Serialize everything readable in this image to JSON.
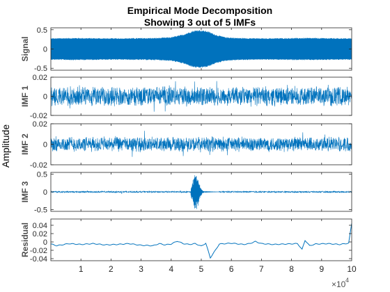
{
  "chart_data": {
    "type": "line",
    "title_line1": "Empirical Mode Decomposition",
    "title_line2": "Showing 3 out of 5 IMFs",
    "ylabel": "Amplitude",
    "xlim": [
      0,
      100000
    ],
    "x_ticks": [
      "1",
      "2",
      "3",
      "4",
      "5",
      "6",
      "7",
      "8",
      "9",
      "10"
    ],
    "x_exponent_base": "×10",
    "x_exponent_power": "4",
    "line_color": "#0072BD",
    "grid": false,
    "panels": [
      {
        "name": "Signal",
        "ylim": [
          -0.55,
          0.55
        ],
        "yticks": [
          {
            "value": 0.5,
            "label": "0.5"
          },
          {
            "value": 0,
            "label": "0"
          },
          {
            "value": -0.5,
            "label": "-0.5"
          }
        ],
        "envelope": {
          "x": [
            0,
            8000,
            20000,
            35000,
            40000,
            44000,
            47000,
            49000,
            52000,
            55000,
            58000,
            62000,
            70000,
            85000,
            100000
          ],
          "upper": [
            0.28,
            0.29,
            0.28,
            0.29,
            0.31,
            0.38,
            0.47,
            0.5,
            0.47,
            0.37,
            0.31,
            0.29,
            0.28,
            0.29,
            0.28
          ],
          "lower": [
            -0.28,
            -0.29,
            -0.28,
            -0.29,
            -0.31,
            -0.38,
            -0.47,
            -0.5,
            -0.47,
            -0.37,
            -0.31,
            -0.29,
            -0.28,
            -0.29,
            -0.28
          ]
        }
      },
      {
        "name": "IMF 1",
        "ylim": [
          -0.02,
          0.02
        ],
        "yticks": [
          {
            "value": 0.02,
            "label": "0.02"
          },
          {
            "value": 0,
            "label": "0"
          },
          {
            "value": -0.02,
            "label": "-0.02"
          }
        ],
        "noise_amplitude": 0.011
      },
      {
        "name": "IMF 2",
        "ylim": [
          -0.02,
          0.02
        ],
        "yticks": [
          {
            "value": 0.02,
            "label": "0.02"
          },
          {
            "value": 0,
            "label": "0"
          },
          {
            "value": -0.02,
            "label": "-0.02"
          }
        ],
        "noise_amplitude": 0.008
      },
      {
        "name": "IMF 3",
        "ylim": [
          -0.55,
          0.55
        ],
        "yticks": [
          {
            "value": 0.5,
            "label": "0.5"
          },
          {
            "value": 0,
            "label": "0"
          },
          {
            "value": -0.5,
            "label": "-0.5"
          }
        ],
        "burst": {
          "x": [
            48000,
            50000,
            52000,
            54000
          ],
          "peaks": [
            0.48,
            -0.38,
            0.15,
            -0.05
          ]
        },
        "baseline_noise": 0.02
      },
      {
        "name": "Residual",
        "ylim": [
          -0.045,
          0.055
        ],
        "yticks": [
          {
            "value": 0.04,
            "label": "0.04"
          },
          {
            "value": 0.02,
            "label": "0.02"
          },
          {
            "value": 0,
            "label": "0"
          },
          {
            "value": -0.02,
            "label": "-0.02"
          },
          {
            "value": -0.04,
            "label": "-0.04"
          }
        ],
        "curve": {
          "x": [
            0,
            2000,
            6000,
            10000,
            14000,
            18000,
            22000,
            26000,
            30000,
            34000,
            36000,
            38000,
            40000,
            42000,
            44000,
            46000,
            48000,
            50000,
            51500,
            53000,
            54500,
            56000,
            60000,
            64000,
            66000,
            68000,
            70000,
            74000,
            78000,
            82000,
            83500,
            84500,
            86000,
            88000,
            92000,
            96000,
            99000,
            100000
          ],
          "y": [
            -0.005,
            -0.009,
            -0.004,
            -0.006,
            -0.004,
            -0.007,
            -0.006,
            -0.004,
            -0.008,
            -0.009,
            -0.004,
            -0.007,
            -0.005,
            0.002,
            -0.004,
            -0.006,
            -0.004,
            -0.01,
            -0.003,
            -0.038,
            -0.022,
            -0.005,
            -0.003,
            -0.006,
            -0.004,
            0.001,
            -0.004,
            -0.006,
            -0.005,
            -0.004,
            -0.018,
            0.004,
            -0.009,
            -0.005,
            -0.004,
            -0.006,
            -0.003,
            0.045
          ]
        }
      }
    ]
  }
}
